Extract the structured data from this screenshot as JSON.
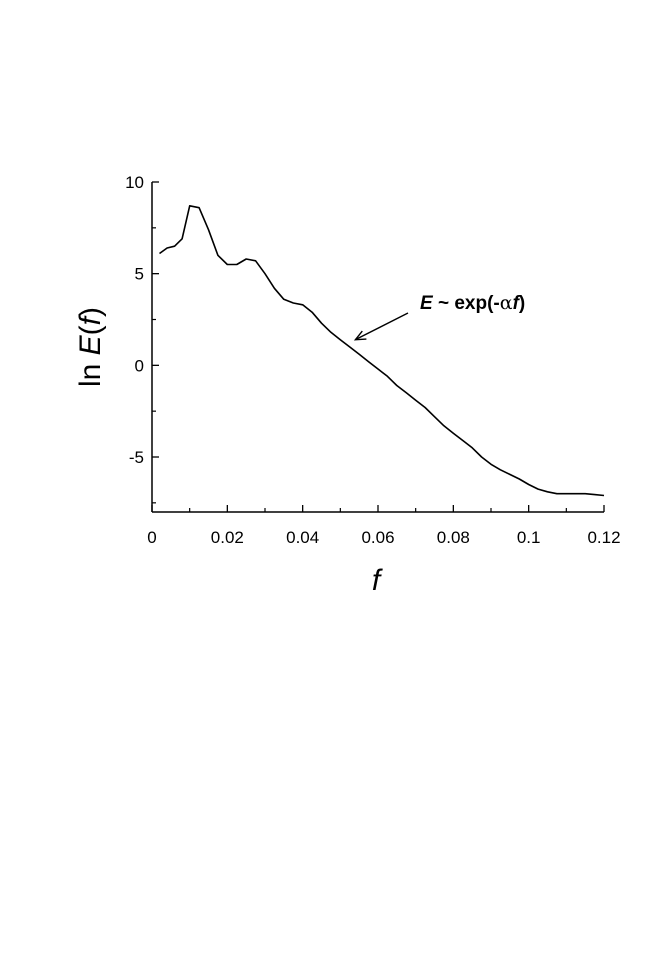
{
  "chart_data": {
    "type": "line",
    "title": "",
    "xlabel": "f",
    "ylabel_prefix": "ln ",
    "ylabel_E": "E",
    "ylabel_open": "(",
    "ylabel_f": "f",
    "ylabel_close": ")",
    "xlim": [
      0,
      0.12
    ],
    "ylim": [
      -8,
      10
    ],
    "xticks": [
      0,
      0.02,
      0.04,
      0.06,
      0.08,
      0.1,
      0.12
    ],
    "xtick_labels": [
      "0",
      "0.02",
      "0.04",
      "0.06",
      "0.08",
      "0.1",
      "0.12"
    ],
    "yticks": [
      -5,
      0,
      5,
      10
    ],
    "ytick_labels": [
      "-5",
      "0",
      "5",
      "10"
    ],
    "grid": false,
    "series": [
      {
        "x": [
          0.002,
          0.004,
          0.006,
          0.008,
          0.01,
          0.0125,
          0.015,
          0.0175,
          0.02,
          0.0225,
          0.025,
          0.0275,
          0.03,
          0.0325,
          0.035,
          0.0375,
          0.04,
          0.0425,
          0.045,
          0.0475,
          0.05,
          0.0525,
          0.055,
          0.0575,
          0.06,
          0.0625,
          0.065,
          0.0675,
          0.07,
          0.0725,
          0.075,
          0.0775,
          0.08,
          0.0825,
          0.085,
          0.0875,
          0.09,
          0.0925,
          0.095,
          0.0975,
          0.1,
          0.1025,
          0.105,
          0.1075,
          0.11,
          0.1125,
          0.115,
          0.1175,
          0.12
        ],
        "y": [
          6.1,
          6.4,
          6.5,
          6.9,
          8.7,
          8.6,
          7.4,
          6.0,
          5.5,
          5.5,
          5.8,
          5.7,
          5.0,
          4.2,
          3.6,
          3.4,
          3.3,
          2.9,
          2.3,
          1.8,
          1.4,
          1.0,
          0.6,
          0.2,
          -0.2,
          -0.6,
          -1.1,
          -1.5,
          -1.9,
          -2.3,
          -2.8,
          -3.3,
          -3.7,
          -4.1,
          -4.5,
          -5.0,
          -5.4,
          -5.7,
          -5.95,
          -6.2,
          -6.5,
          -6.75,
          -6.9,
          -7.0,
          -7.0,
          -7.0,
          -7.0,
          -7.05,
          -7.1
        ]
      }
    ],
    "annotation": {
      "E": "E",
      "mid": " ~ exp(-",
      "alpha": "α",
      "f": "f",
      "close": ")",
      "arrow_to": {
        "x": 0.054,
        "y": 1.4
      }
    }
  }
}
